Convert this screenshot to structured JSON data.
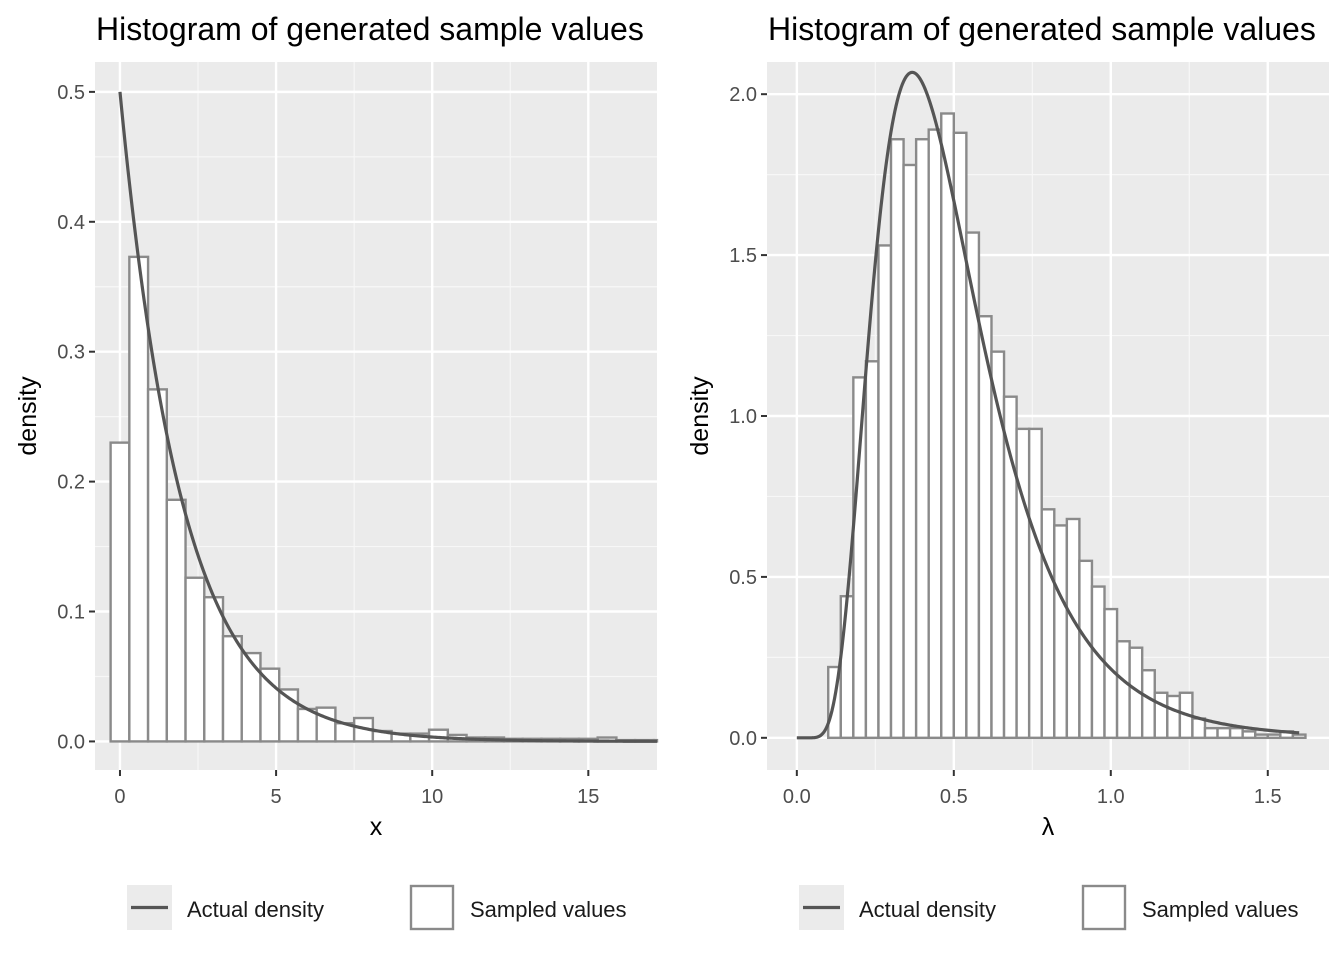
{
  "chart_data": [
    {
      "type": "histogram",
      "title": "Histogram of generated sample values",
      "xlabel": "x",
      "ylabel": "density",
      "xlim": [
        -0.8,
        17.2
      ],
      "ylim": [
        -0.022,
        0.523
      ],
      "x_ticks": [
        {
          "v": 0,
          "label": "0"
        },
        {
          "v": 5,
          "label": "5"
        },
        {
          "v": 10,
          "label": "10"
        },
        {
          "v": 15,
          "label": "15"
        }
      ],
      "y_ticks": [
        {
          "v": 0,
          "label": "0.0"
        },
        {
          "v": 0.1,
          "label": "0.1"
        },
        {
          "v": 0.2,
          "label": "0.2"
        },
        {
          "v": 0.3,
          "label": "0.3"
        },
        {
          "v": 0.4,
          "label": "0.4"
        },
        {
          "v": 0.5,
          "label": "0.5"
        }
      ],
      "grid": true,
      "legend_position": "bottom",
      "legend": {
        "line_label": "Actual density",
        "box_label": "Sampled values"
      },
      "bins": {
        "start": -0.3,
        "width": 0.6,
        "heights": [
          0.23,
          0.373,
          0.271,
          0.186,
          0.126,
          0.111,
          0.081,
          0.068,
          0.056,
          0.04,
          0.025,
          0.026,
          0.014,
          0.018,
          0.008,
          0.006,
          0.006,
          0.009,
          0.005,
          0.003,
          0.003,
          0.002,
          0.002,
          0.002,
          0.002,
          0.002,
          0.003,
          0.001,
          0.001,
          0.001
        ]
      },
      "density_curve": {
        "type": "exponential",
        "rate": 0.5,
        "x_range": [
          0,
          17.2
        ]
      }
    },
    {
      "type": "histogram",
      "title": "Histogram of generated sample values",
      "xlabel": "λ",
      "ylabel": "density",
      "xlim": [
        -0.095,
        1.695
      ],
      "ylim": [
        -0.1,
        2.1
      ],
      "x_ticks": [
        {
          "v": 0,
          "label": "0.0"
        },
        {
          "v": 0.5,
          "label": "0.5"
        },
        {
          "v": 1,
          "label": "1.0"
        },
        {
          "v": 1.5,
          "label": "1.5"
        }
      ],
      "y_ticks": [
        {
          "v": 0,
          "label": "0.0"
        },
        {
          "v": 0.5,
          "label": "0.5"
        },
        {
          "v": 1,
          "label": "1.0"
        },
        {
          "v": 1.5,
          "label": "1.5"
        },
        {
          "v": 2,
          "label": "2.0"
        }
      ],
      "grid": true,
      "legend_position": "bottom",
      "legend": {
        "line_label": "Actual density",
        "box_label": "Sampled values"
      },
      "bins": {
        "start": 0.1,
        "width": 0.04,
        "heights": [
          0.22,
          0.44,
          1.12,
          1.17,
          1.53,
          1.86,
          1.78,
          1.86,
          1.89,
          1.94,
          1.88,
          1.57,
          1.31,
          1.2,
          1.06,
          0.96,
          0.96,
          0.71,
          0.66,
          0.68,
          0.55,
          0.47,
          0.4,
          0.3,
          0.28,
          0.21,
          0.14,
          0.13,
          0.14,
          0.06,
          0.03,
          0.03,
          0.03,
          0.02,
          0.01,
          0.01,
          0.02,
          0.01,
          0.0,
          0.0,
          0.02,
          0.0,
          0.0,
          0.02
        ]
      },
      "density_curve": {
        "type": "lognormal",
        "meanlog": -0.78,
        "sdlog": 0.47,
        "x_range": [
          0,
          1.6
        ]
      }
    }
  ]
}
